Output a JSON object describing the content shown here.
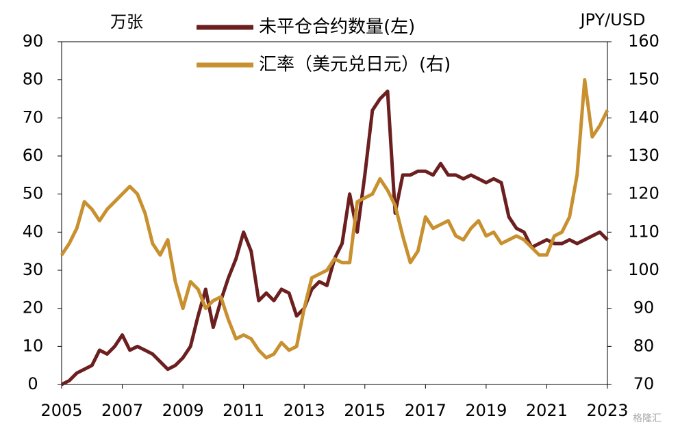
{
  "chart_data": {
    "type": "line",
    "y_label": "万张",
    "y2_label": "JPY/USD",
    "watermark": "格隆汇",
    "x": [
      2005.0,
      2005.25,
      2005.5,
      2005.75,
      2006.0,
      2006.25,
      2006.5,
      2006.75,
      2007.0,
      2007.25,
      2007.5,
      2007.75,
      2008.0,
      2008.25,
      2008.5,
      2008.75,
      2009.0,
      2009.25,
      2009.5,
      2009.75,
      2010.0,
      2010.25,
      2010.5,
      2010.75,
      2011.0,
      2011.25,
      2011.5,
      2011.75,
      2012.0,
      2012.25,
      2012.5,
      2012.75,
      2013.0,
      2013.25,
      2013.5,
      2013.75,
      2014.0,
      2014.25,
      2014.5,
      2014.75,
      2015.0,
      2015.25,
      2015.5,
      2015.75,
      2016.0,
      2016.25,
      2016.5,
      2016.75,
      2017.0,
      2017.25,
      2017.5,
      2017.75,
      2018.0,
      2018.25,
      2018.5,
      2018.75,
      2019.0,
      2019.25,
      2019.5,
      2019.75,
      2020.0,
      2020.25,
      2020.5,
      2020.75,
      2021.0,
      2021.25,
      2021.5,
      2021.75,
      2022.0,
      2022.25,
      2022.5,
      2022.75,
      2023.0
    ],
    "series": [
      {
        "name": "未平仓合约数量(左)",
        "color": "#6b1f1f",
        "axis": "y",
        "values": [
          0,
          1,
          3,
          4,
          5,
          9,
          8,
          10,
          13,
          9,
          10,
          9,
          8,
          6,
          4,
          5,
          7,
          10,
          18,
          25,
          15,
          22,
          28,
          33,
          40,
          35,
          22,
          24,
          22,
          25,
          24,
          18,
          20,
          25,
          27,
          26,
          33,
          37,
          50,
          40,
          55,
          72,
          75,
          77,
          45,
          55,
          55,
          56,
          56,
          55,
          58,
          55,
          55,
          54,
          55,
          54,
          53,
          54,
          53,
          44,
          41,
          40,
          36,
          37,
          38,
          37,
          37,
          38,
          37,
          38,
          39,
          40,
          38
        ]
      },
      {
        "name": "汇率（美元兑日元）(右)",
        "color": "#c8902f",
        "axis": "y2",
        "values": [
          104,
          107,
          111,
          118,
          116,
          113,
          116,
          118,
          120,
          122,
          120,
          115,
          107,
          104,
          108,
          97,
          90,
          97,
          95,
          90,
          92,
          93,
          87,
          82,
          83,
          82,
          79,
          77,
          78,
          81,
          79,
          80,
          90,
          98,
          99,
          100,
          103,
          102,
          102,
          118,
          119,
          120,
          124,
          121,
          117,
          109,
          102,
          105,
          114,
          111,
          112,
          113,
          109,
          108,
          111,
          113,
          109,
          110,
          107,
          108,
          109,
          108,
          106,
          104,
          104,
          109,
          110,
          114,
          125,
          150,
          135,
          138,
          142
        ]
      }
    ],
    "xlim": [
      2005,
      2023
    ],
    "xticks": [
      2005,
      2007,
      2009,
      2011,
      2013,
      2015,
      2017,
      2019,
      2021,
      2023
    ],
    "ylim": [
      0,
      90
    ],
    "yticks": [
      0,
      10,
      20,
      30,
      40,
      50,
      60,
      70,
      80,
      90
    ],
    "y2lim": [
      70,
      160
    ],
    "y2ticks": [
      70,
      80,
      90,
      100,
      110,
      120,
      130,
      140,
      150,
      160
    ],
    "legend": "top"
  }
}
